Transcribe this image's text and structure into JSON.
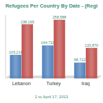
{
  "chart_data": {
    "type": "bar",
    "title": "Refugees Per Country By Date - (Regi",
    "subtitle": "2 to April 17, 2013",
    "categories": [
      "Lebanon",
      "Turkey",
      "Iraq"
    ],
    "series": [
      {
        "color": "#4f81bd",
        "values": [
          103216,
          144710,
          68712
        ],
        "value_labels": [
          "103,216",
          "144,710",
          "68,712"
        ]
      },
      {
        "color": "#c0504d",
        "values": [
          238165,
          258588,
          133870
        ],
        "value_labels": [
          "238,165",
          "258,588",
          "133,870"
        ]
      }
    ],
    "ylim": [
      0,
      280000
    ],
    "yticks": [],
    "tick_labels": "x",
    "grid": false,
    "data_labels": true
  }
}
